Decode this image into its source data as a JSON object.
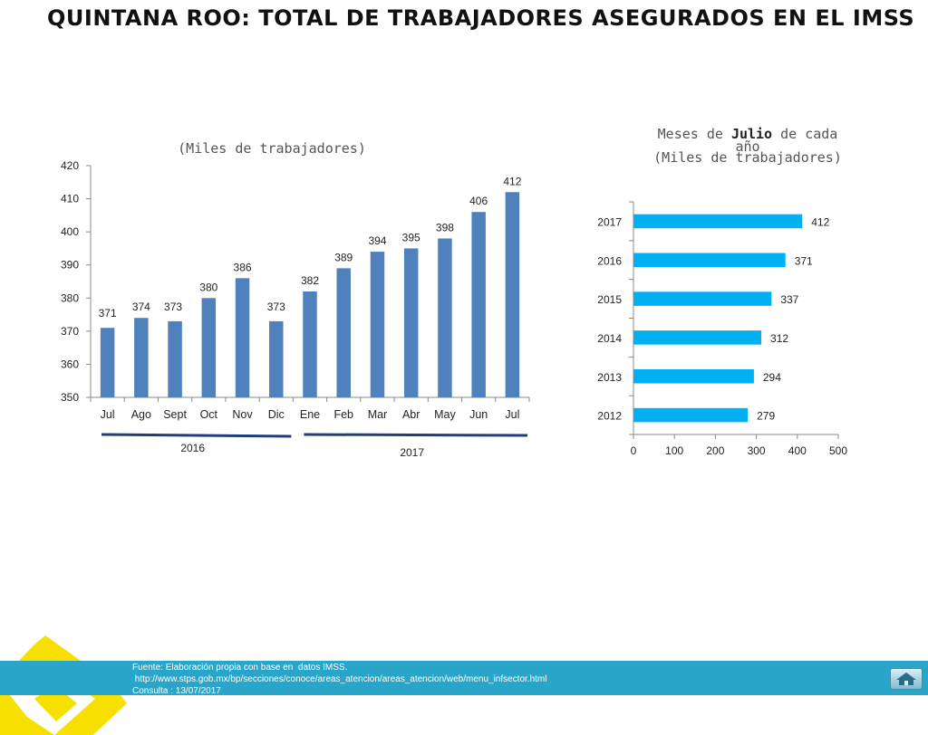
{
  "title": "QUINTANA ROO: TOTAL DE TRABAJADORES ASEGURADOS EN EL IMSS",
  "left_subtitle": "(Miles de trabajadores)",
  "right_heading": {
    "prefix": "Meses de ",
    "month": "Julio",
    "suffix": " de cada",
    "line2": "año",
    "line3": "(Miles de trabajadores)"
  },
  "colors": {
    "bar_left": "#4f81bd",
    "bar_right": "#00b0f0",
    "year_line": "#1f3f7a",
    "footer": "#29a5c9",
    "logo": "#f7e000"
  },
  "chart_data": [
    {
      "type": "bar",
      "orientation": "vertical",
      "categories": [
        "Jul",
        "Ago",
        "Sept",
        "Oct",
        "Nov",
        "Dic",
        "Ene",
        "Feb",
        "Mar",
        "Abr",
        "May",
        "Jun",
        "Jul"
      ],
      "values": [
        371,
        374,
        373,
        380,
        386,
        373,
        382,
        389,
        394,
        395,
        398,
        406,
        412
      ],
      "ylim": [
        350,
        420
      ],
      "yticks": [
        350,
        360,
        370,
        380,
        390,
        400,
        410,
        420
      ],
      "groups": [
        {
          "label": "2016",
          "from": 0,
          "to": 5
        },
        {
          "label": "2017",
          "from": 6,
          "to": 12
        }
      ],
      "grid": false
    },
    {
      "type": "bar",
      "orientation": "horizontal",
      "categories": [
        "2017",
        "2016",
        "2015",
        "2014",
        "2013",
        "2012"
      ],
      "values": [
        412,
        371,
        337,
        312,
        294,
        279
      ],
      "xlim": [
        0,
        500
      ],
      "xticks": [
        0,
        100,
        200,
        300,
        400,
        500
      ],
      "grid": false
    }
  ],
  "footer": {
    "line1": "Fuente: Elaboración propia con base en  datos IMSS.",
    "line2": " http://www.stps.gob.mx/bp/secciones/conoce/areas_atencion/areas_atencion/web/menu_infsector.html",
    "line3": "Consulta : 13/07/2017"
  },
  "icons": {
    "logo": "yellow-diamond-logo-icon",
    "home": "home-icon"
  }
}
